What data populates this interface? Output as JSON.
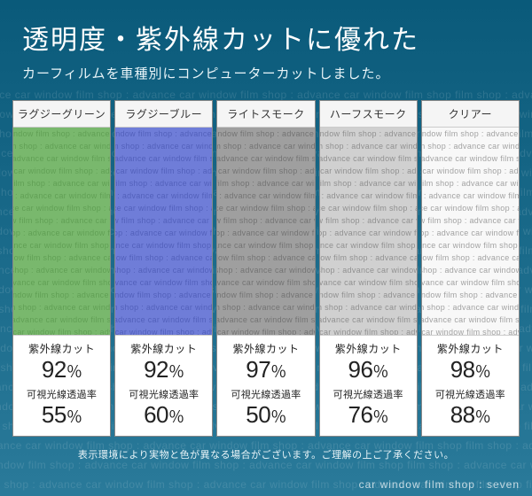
{
  "background_gradient": [
    "#0a5a7a",
    "#1a6a8a",
    "#2a7a9a"
  ],
  "watermark_text": "film shop : advance car window film shop : advance car window film shop : advance car window film shop",
  "header": {
    "title": "透明度・紫外線カットに優れた",
    "subtitle": "カーフィルムを車種別にコンピューターカットしました。"
  },
  "swatch_bg_text": "ndow film shop : advance car window film shop : advance car w",
  "uv_label": "紫外線カット",
  "trans_label": "可視光線透過率",
  "cards": [
    {
      "name": "ラグジーグリーン",
      "color": "rgba(76,160,60,0.75)",
      "uv": "92",
      "trans": "55"
    },
    {
      "name": "ラグジーブルー",
      "color": "rgba(50,70,200,0.70)",
      "uv": "92",
      "trans": "60"
    },
    {
      "name": "ライトスモーク",
      "color": "rgba(80,80,80,0.55)",
      "uv": "97",
      "trans": "50"
    },
    {
      "name": "ハーフスモーク",
      "color": "rgba(120,120,120,0.35)",
      "uv": "96",
      "trans": "76"
    },
    {
      "name": "クリアー",
      "color": "rgba(200,200,200,0.12)",
      "uv": "98",
      "trans": "88"
    }
  ],
  "disclaimer": "表示環境により実物と色が異なる場合がございます。ご理解の上ご了承ください。",
  "footer": "car window film shop : seven",
  "percent_symbol": "％"
}
